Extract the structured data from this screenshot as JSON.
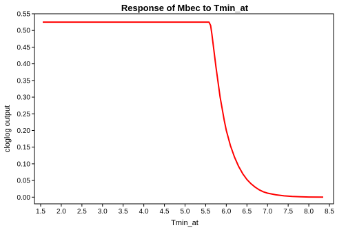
{
  "chart_data": {
    "type": "line",
    "title": "Response of Mbec to Tmin_at",
    "xlabel": "Tmin_at",
    "ylabel": "cloglog output",
    "xlim": [
      1.35,
      8.6
    ],
    "ylim": [
      -0.02,
      0.55
    ],
    "x_ticks": [
      "1.5",
      "2.0",
      "2.5",
      "3.0",
      "3.5",
      "4.0",
      "4.5",
      "5.0",
      "5.5",
      "6.0",
      "6.5",
      "7.0",
      "7.5",
      "8.0",
      "8.5"
    ],
    "y_ticks": [
      "0.00",
      "0.05",
      "0.10",
      "0.15",
      "0.20",
      "0.25",
      "0.30",
      "0.35",
      "0.40",
      "0.45",
      "0.50",
      "0.55"
    ],
    "grid": false,
    "series": [
      {
        "color": "#ff0000",
        "x": [
          1.55,
          5.58,
          5.62,
          5.65,
          5.7,
          5.75,
          5.8,
          5.85,
          5.9,
          5.95,
          6.0,
          6.1,
          6.2,
          6.3,
          6.4,
          6.5,
          6.6,
          6.7,
          6.8,
          6.9,
          7.0,
          7.2,
          7.4,
          7.6,
          7.8,
          8.0,
          8.35
        ],
        "y": [
          0.525,
          0.525,
          0.515,
          0.49,
          0.44,
          0.39,
          0.345,
          0.3,
          0.265,
          0.23,
          0.2,
          0.155,
          0.12,
          0.092,
          0.07,
          0.053,
          0.04,
          0.03,
          0.022,
          0.016,
          0.012,
          0.007,
          0.004,
          0.002,
          0.001,
          0.0005,
          0.0
        ]
      }
    ]
  }
}
